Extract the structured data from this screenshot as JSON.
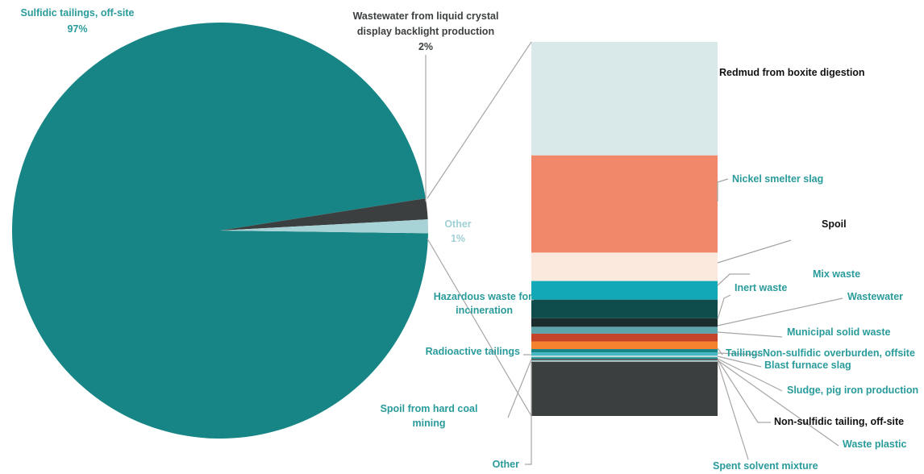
{
  "colors": {
    "main_teal": "#178585",
    "dark_gray": "#3c3f40",
    "light_blue": "#a7d3d6",
    "teal_label": "#2a9b9b",
    "light_blue_label": "#9fd0d4",
    "leader": "#a6a6a6"
  },
  "chart_data": [
    {
      "type": "pie",
      "slices": [
        {
          "name": "Sulfidic tailings, off-site",
          "value": 97,
          "label_pct": "97%",
          "color": "#178585"
        },
        {
          "name": "Wastewater from liquid crystal display backlight production",
          "value": 2,
          "label_pct": "2%",
          "color": "#3c3f40"
        },
        {
          "name": "Other",
          "value": 1,
          "label_pct": "1%",
          "color": "#a7d3d6"
        }
      ]
    },
    {
      "type": "bar",
      "stacked": true,
      "description_of_parent": "Other",
      "segments": [
        {
          "name": "Redmud from boxite digestion",
          "value": 28.0,
          "color": "#d9e9ea"
        },
        {
          "name": "Nickel smelter slag",
          "value": 24.0,
          "color": "#f2886a"
        },
        {
          "name": "Spoil",
          "value": 7.0,
          "color": "#fbe9de"
        },
        {
          "name": "Mix waste",
          "value": 4.6,
          "color": "#13a8b8"
        },
        {
          "name": "Hazardous waste for incineration",
          "value": 4.6,
          "color": "#0f4d4d"
        },
        {
          "name": "Inert waste",
          "value": 2.1,
          "color": "#1b2d2d"
        },
        {
          "name": "Wastewater",
          "value": 1.7,
          "color": "#5fa4aa"
        },
        {
          "name": "Municipal solid waste",
          "value": 1.9,
          "color": "#c5432a"
        },
        {
          "name": "Radioactive tailings",
          "value": 1.9,
          "color": "#f4822e"
        },
        {
          "name": "Tailings",
          "value": 0.8,
          "color": "#178585"
        },
        {
          "name": "Non-sulfidic overburden, offsite",
          "value": 0.8,
          "color": "#45b7c2"
        },
        {
          "name": "Blast furnace slag",
          "value": 0.4,
          "color": "#b9d9dc"
        },
        {
          "name": "Sludge, pig iron production",
          "value": 0.4,
          "color": "#2a9b9b"
        },
        {
          "name": "Non-sulfidic tailing, off-site",
          "value": 0.3,
          "color": "#3c3f40"
        },
        {
          "name": "Waste plastic",
          "value": 0.2,
          "color": "#5fa4aa"
        },
        {
          "name": "Spent solvent mixture",
          "value": 0.2,
          "color": "#e6eeee"
        },
        {
          "name": "Spoil from hard coal mining",
          "value": 13.4,
          "color": "#3c3f40"
        },
        {
          "name": "Other",
          "value": 0.0,
          "color": "#3c3f40"
        }
      ]
    }
  ],
  "labels": {
    "sulfidic": {
      "line1": "Sulfidic tailings, off-site",
      "line2": "97%"
    },
    "wastewater_lcd": {
      "line1": "Wastewater from liquid crystal",
      "line2": "display backlight production",
      "line3": "2%"
    },
    "other_pie": {
      "line1": "Other",
      "line2": "1%"
    },
    "redmud": "Redmud from boxite digestion",
    "nickel": "Nickel smelter slag",
    "spoil": "Spoil",
    "mix": "Mix waste",
    "inert": "Inert waste",
    "hazardous": {
      "line1": "Hazardous waste for",
      "line2": "incineration"
    },
    "wastewater": "Wastewater",
    "municipal": "Municipal solid waste",
    "radioactive": "Radioactive tailings",
    "tailings": "Tailings",
    "nonsulf_overburden": "Non-sulfidic overburden, offsite",
    "blast": "Blast furnace slag",
    "sludge": "Sludge, pig iron production",
    "spoil_coal": {
      "line1": "Spoil from hard coal",
      "line2": "mining"
    },
    "nonsulf_tailing": "Non-sulfidic tailing, off-site",
    "waste_plastic": "Waste plastic",
    "other_bar": "Other",
    "spent": "Spent solvent mixture"
  }
}
